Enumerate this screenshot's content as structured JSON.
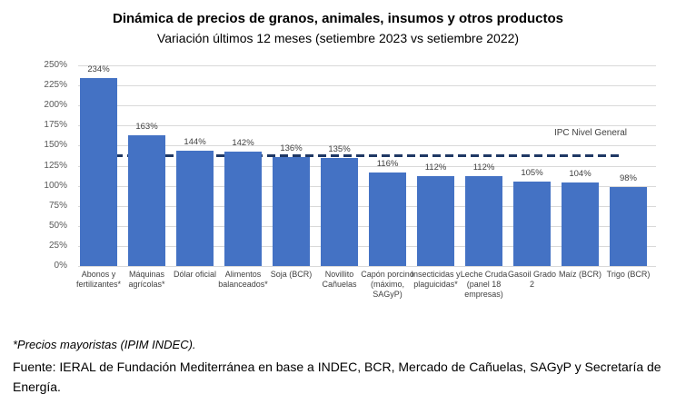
{
  "chart_data": {
    "type": "bar",
    "title": "Dinámica de precios de granos, animales, insumos y otros productos",
    "subtitle": "Variación últimos 12 meses (setiembre 2023 vs setiembre 2022)",
    "categories": [
      "Abonos y fertilizantes*",
      "Máquinas agrícolas*",
      "Dólar oficial",
      "Alimentos balanceados*",
      "Soja (BCR)",
      "Novillito Cañuelas",
      "Capón porcino (máximo, SAGyP)",
      "Insecticidas y plaguicidas*",
      "Leche Cruda (panel 18 empresas)",
      "Gasoil Grado 2",
      "Maíz (BCR)",
      "Trigo (BCR)"
    ],
    "values": [
      234,
      163,
      144,
      142,
      136,
      135,
      116,
      112,
      112,
      105,
      104,
      98
    ],
    "value_labels": [
      "234%",
      "163%",
      "144%",
      "142%",
      "136%",
      "135%",
      "116%",
      "112%",
      "112%",
      "105%",
      "104%",
      "98%"
    ],
    "xlabel": "",
    "ylabel": "",
    "ylim": [
      0,
      250
    ],
    "ytick_step": 25,
    "ytick_labels": [
      "0%",
      "25%",
      "50%",
      "75%",
      "100%",
      "125%",
      "150%",
      "175%",
      "200%",
      "225%",
      "250%"
    ],
    "grid": true,
    "legend": "none",
    "reference_line": {
      "label": "IPC Nivel General",
      "value": 138
    },
    "bar_color": "#4472c4",
    "reference_line_color": "#1f3864",
    "gridline_color": "#d9d9d9"
  },
  "footer": {
    "note": "*Precios mayoristas (IPIM INDEC).",
    "source": "Fuente: IERAL de Fundación Mediterránea en base a INDEC, BCR, Mercado de Cañuelas, SAGyP y Secretaría de Energía."
  }
}
